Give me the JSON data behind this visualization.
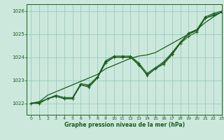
{
  "title": "Graphe pression niveau de la mer (hPa)",
  "background_color": "#cce8dd",
  "grid_color": "#99ccbb",
  "line_color": "#1a5c1a",
  "xlim": [
    -0.5,
    23
  ],
  "ylim": [
    1021.5,
    1026.3
  ],
  "yticks": [
    1022,
    1023,
    1024,
    1025,
    1026
  ],
  "xticks": [
    0,
    1,
    2,
    3,
    4,
    5,
    6,
    7,
    8,
    9,
    10,
    11,
    12,
    13,
    14,
    15,
    16,
    17,
    18,
    19,
    20,
    21,
    22,
    23
  ],
  "series_main": [
    1022.0,
    1022.0,
    1022.2,
    1022.3,
    1022.2,
    1022.2,
    1022.8,
    1022.7,
    1023.1,
    1023.8,
    1024.0,
    1024.0,
    1024.0,
    1023.7,
    1023.2,
    1023.5,
    1023.7,
    1024.1,
    1024.6,
    1024.9,
    1025.1,
    1025.7,
    1025.8,
    1025.95
  ],
  "series_b": [
    1022.0,
    1022.0,
    1022.2,
    1022.3,
    1022.2,
    1022.2,
    1022.8,
    1022.75,
    1023.1,
    1023.75,
    1024.0,
    1024.0,
    1024.0,
    1023.65,
    1023.25,
    1023.5,
    1023.75,
    1024.15,
    1024.6,
    1025.0,
    1025.15,
    1025.7,
    1025.85,
    1025.95
  ],
  "series_c": [
    1022.0,
    1022.05,
    1022.2,
    1022.35,
    1022.25,
    1022.25,
    1022.85,
    1022.8,
    1023.15,
    1023.85,
    1024.05,
    1024.05,
    1024.05,
    1023.75,
    1023.3,
    1023.55,
    1023.8,
    1024.2,
    1024.65,
    1025.05,
    1025.2,
    1025.75,
    1025.9,
    1026.0
  ],
  "series_diag": [
    1022.0,
    1022.07,
    1022.35,
    1022.5,
    1022.65,
    1022.8,
    1022.95,
    1023.1,
    1023.25,
    1023.5,
    1023.65,
    1023.8,
    1023.95,
    1024.05,
    1024.1,
    1024.2,
    1024.4,
    1024.6,
    1024.8,
    1025.0,
    1025.2,
    1025.5,
    1025.75,
    1025.97
  ]
}
